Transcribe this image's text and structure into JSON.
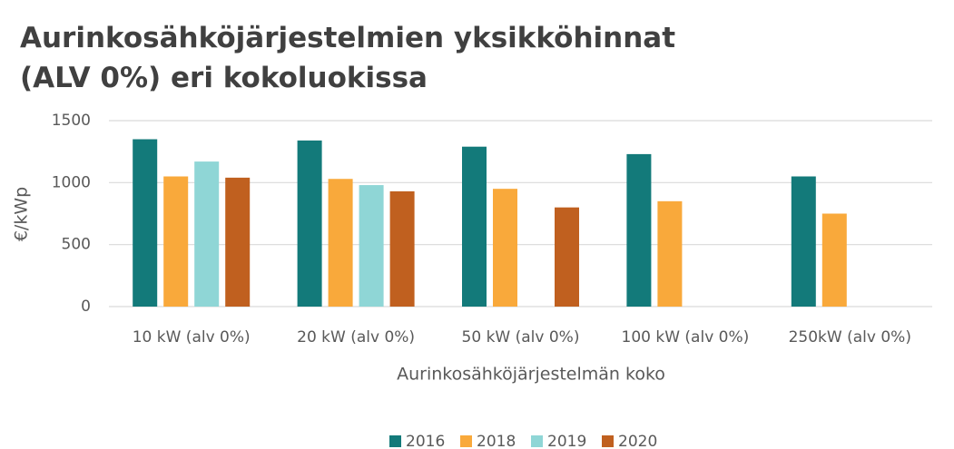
{
  "chart_data": {
    "type": "bar",
    "title": [
      "Aurinkosähköjärjestelmien yksikköhinnat",
      "(ALV 0%) eri kokoluokissa"
    ],
    "x_label": "Aurinkosähköjärjestelmän koko",
    "y_label": "€/kWp",
    "categories": [
      "10 kW (alv 0%)",
      "20 kW (alv 0%)",
      "50 kW (alv 0%)",
      "100 kW (alv 0%)",
      "250kW (alv 0%)"
    ],
    "series": [
      {
        "name": "2016",
        "color": "#137a7a",
        "values": [
          1350,
          1340,
          1290,
          1230,
          1050
        ]
      },
      {
        "name": "2018",
        "color": "#f9a93b",
        "values": [
          1050,
          1030,
          950,
          850,
          750
        ]
      },
      {
        "name": "2019",
        "color": "#8fd6d6",
        "values": [
          1170,
          980,
          null,
          null,
          null
        ]
      },
      {
        "name": "2020",
        "color": "#c0601f",
        "values": [
          1040,
          930,
          800,
          null,
          null
        ]
      }
    ],
    "ylim": [
      0,
      1500
    ],
    "yticks": [
      0,
      500,
      1000,
      1500
    ],
    "grid": true,
    "legend": "bottom"
  }
}
